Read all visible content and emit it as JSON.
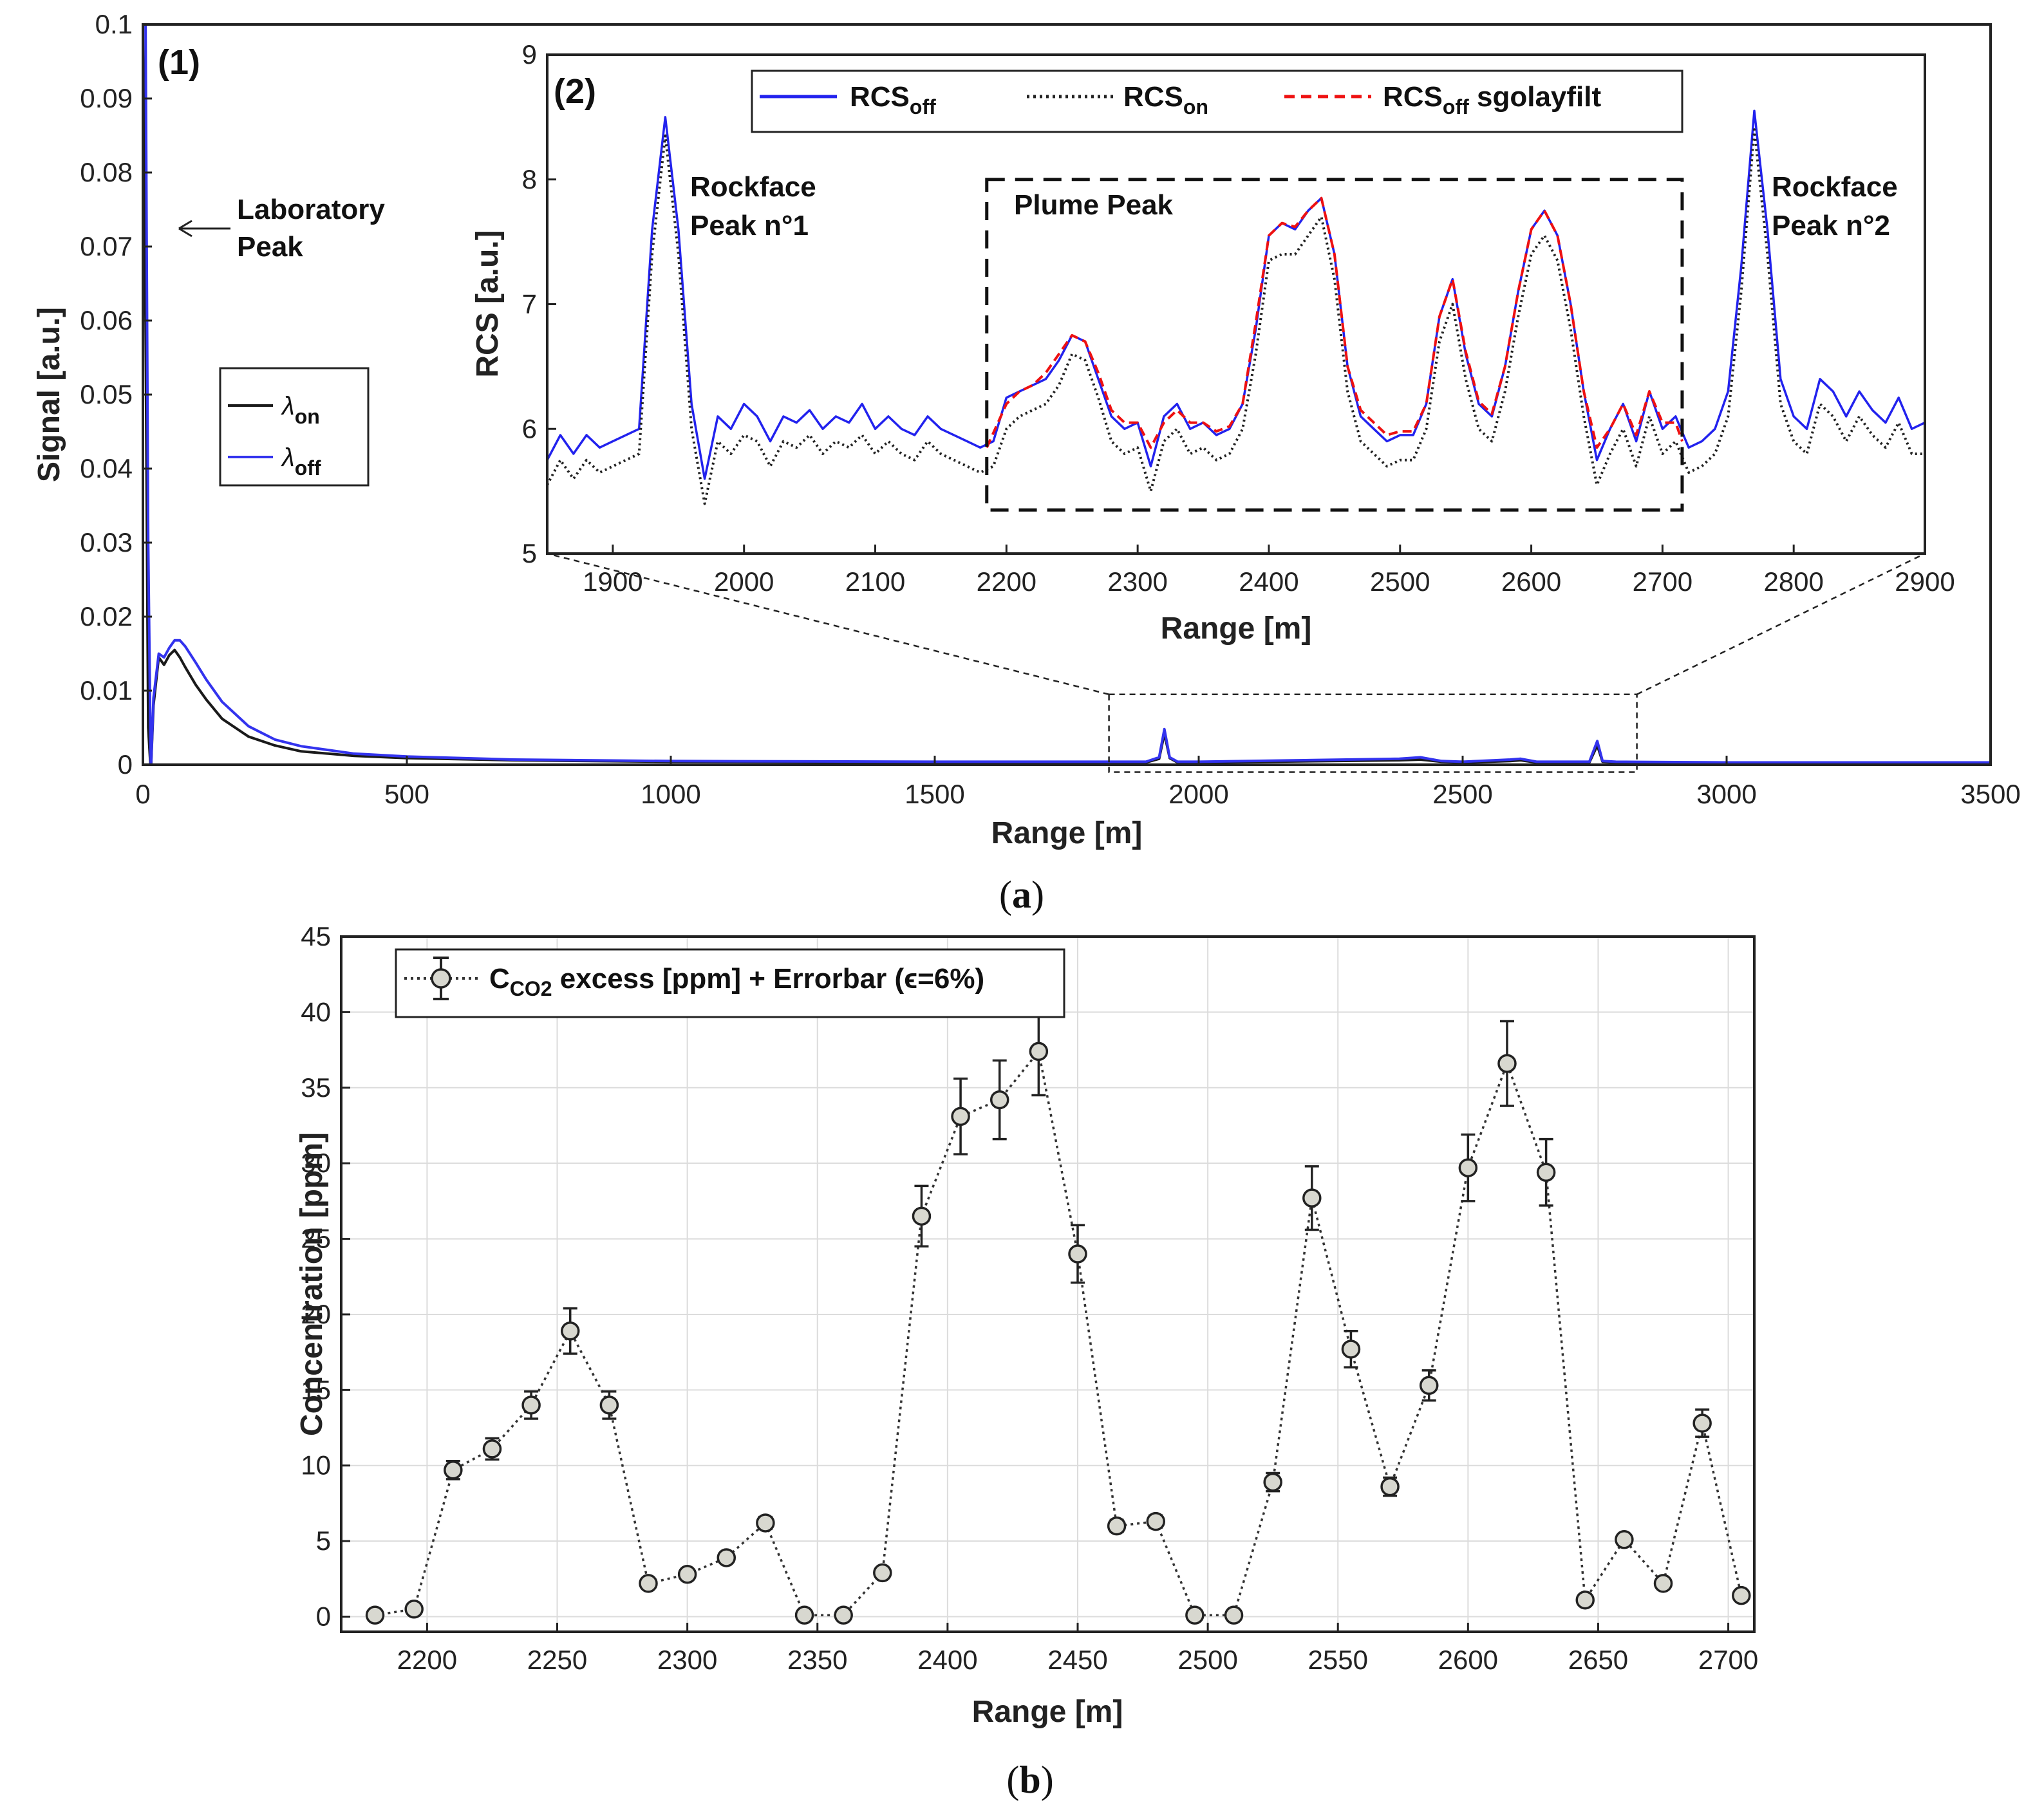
{
  "chart_data": [
    {
      "id": "a1",
      "type": "line",
      "panel_label": "(1)",
      "xlabel": "Range [m]",
      "ylabel": "Signal [a.u.]",
      "xlim": [
        0,
        3500
      ],
      "ylim": [
        0,
        0.1
      ],
      "xticks": [
        "0",
        "500",
        "1000",
        "1500",
        "2000",
        "2500",
        "3000",
        "3500"
      ],
      "xtick_values": [
        0,
        500,
        1000,
        1500,
        2000,
        2500,
        3000,
        3500
      ],
      "yticks": [
        "0",
        "0.01",
        "0.02",
        "0.03",
        "0.04",
        "0.05",
        "0.06",
        "0.07",
        "0.08",
        "0.09",
        "0.1"
      ],
      "ytick_values": [
        0,
        0.01,
        0.02,
        0.03,
        0.04,
        0.05,
        0.06,
        0.07,
        0.08,
        0.09,
        0.1
      ],
      "annotation": [
        "Laboratory",
        "Peak"
      ],
      "legend": {
        "entries": [
          {
            "symbol": "λ",
            "sub": "on",
            "color": "#1a1a1a"
          },
          {
            "symbol": "λ",
            "sub": "off",
            "color": "#3333ee"
          }
        ],
        "position": "left"
      },
      "zoom_box": {
        "x": [
          1830,
          2830
        ],
        "y": [
          -0.001,
          0.0095
        ]
      },
      "series": [
        {
          "name": "λon",
          "color": "#1a1a1a",
          "x": [
            0,
            5,
            10,
            15,
            20,
            30,
            40,
            50,
            60,
            70,
            80,
            100,
            120,
            150,
            200,
            250,
            300,
            400,
            500,
            700,
            1000,
            1500,
            1900,
            1925,
            1935,
            1945,
            1960,
            2000,
            2380,
            2420,
            2460,
            2500,
            2590,
            2610,
            2640,
            2740,
            2755,
            2765,
            2790,
            3000,
            3500
          ],
          "y": [
            0.1,
            0.06,
            0.005,
            -0.001,
            0.008,
            0.0145,
            0.0135,
            0.0148,
            0.0155,
            0.0145,
            0.0132,
            0.0108,
            0.0088,
            0.0062,
            0.0038,
            0.0026,
            0.0018,
            0.0012,
            0.0009,
            0.0006,
            0.0004,
            0.0003,
            0.0003,
            0.0008,
            0.0042,
            0.0009,
            0.0003,
            0.0003,
            0.0006,
            0.0007,
            0.0004,
            0.0003,
            0.0005,
            0.0006,
            0.0003,
            0.0003,
            0.0026,
            0.0004,
            0.0003,
            0.0002,
            0.0002
          ]
        },
        {
          "name": "λoff",
          "color": "#3333ee",
          "x": [
            0,
            5,
            10,
            15,
            20,
            30,
            40,
            50,
            60,
            70,
            80,
            100,
            120,
            150,
            200,
            250,
            300,
            400,
            500,
            700,
            1000,
            1500,
            1900,
            1925,
            1935,
            1945,
            1960,
            2000,
            2380,
            2420,
            2460,
            2500,
            2590,
            2610,
            2640,
            2740,
            2755,
            2765,
            2790,
            3000,
            3500
          ],
          "y": [
            0.1,
            0.1,
            0.03,
            -0.001,
            0.009,
            0.015,
            0.0145,
            0.0158,
            0.0168,
            0.0168,
            0.016,
            0.0138,
            0.0115,
            0.0085,
            0.0052,
            0.0034,
            0.0025,
            0.0015,
            0.0011,
            0.0007,
            0.0005,
            0.0004,
            0.0004,
            0.001,
            0.0048,
            0.001,
            0.0004,
            0.0004,
            0.0008,
            0.001,
            0.0005,
            0.0004,
            0.0007,
            0.0008,
            0.0004,
            0.0004,
            0.0032,
            0.0005,
            0.0004,
            0.0003,
            0.0003
          ]
        }
      ]
    },
    {
      "id": "a2",
      "type": "line",
      "panel_label": "(2)",
      "xlabel": "Range [m]",
      "ylabel": "RCS [a.u.]",
      "xlim": [
        1850,
        2900
      ],
      "ylim": [
        5,
        9
      ],
      "xticks": [
        "1900",
        "2000",
        "2100",
        "2200",
        "2300",
        "2400",
        "2500",
        "2600",
        "2700",
        "2800",
        "2900"
      ],
      "xtick_values": [
        1900,
        2000,
        2100,
        2200,
        2300,
        2400,
        2500,
        2600,
        2700,
        2800,
        2900
      ],
      "yticks": [
        "5",
        "6",
        "7",
        "8",
        "9"
      ],
      "ytick_values": [
        5,
        6,
        7,
        8,
        9
      ],
      "annotations": [
        {
          "lines": [
            "Rockface",
            "Peak n°1"
          ],
          "x": 1960,
          "y": 8.05
        },
        {
          "lines": [
            "Plume Peak"
          ],
          "x": 2195,
          "y": 7.75
        },
        {
          "lines": [
            "Rockface",
            "Peak n°2"
          ],
          "x": 2785,
          "y": 8.05
        }
      ],
      "plume_box": {
        "x": [
          2185,
          2715
        ],
        "y": [
          5.35,
          8.0
        ]
      },
      "legend": {
        "entries": [
          {
            "label": "RCS",
            "sub": "off",
            "suffix": "",
            "color": "#2222ee",
            "dash": "solid"
          },
          {
            "label": "RCS",
            "sub": "on",
            "suffix": "",
            "color": "#222222",
            "dash": "dotted"
          },
          {
            "label": "RCS",
            "sub": "off",
            "suffix": " sgolayfilt",
            "color": "#ee1111",
            "dash": "dashed"
          }
        ],
        "position": "top-center"
      },
      "series": [
        {
          "name": "RCSoff",
          "color": "#2222ee",
          "x": [
            1850,
            1860,
            1870,
            1880,
            1890,
            1900,
            1910,
            1920,
            1930,
            1940,
            1950,
            1960,
            1970,
            1980,
            1990,
            2000,
            2010,
            2020,
            2030,
            2040,
            2050,
            2060,
            2070,
            2080,
            2090,
            2100,
            2110,
            2120,
            2130,
            2140,
            2150,
            2160,
            2170,
            2180,
            2190,
            2200,
            2210,
            2220,
            2230,
            2240,
            2250,
            2260,
            2270,
            2280,
            2290,
            2300,
            2310,
            2320,
            2330,
            2340,
            2350,
            2360,
            2370,
            2380,
            2390,
            2400,
            2410,
            2420,
            2430,
            2440,
            2450,
            2460,
            2470,
            2480,
            2490,
            2500,
            2510,
            2520,
            2530,
            2540,
            2550,
            2560,
            2570,
            2580,
            2590,
            2600,
            2610,
            2620,
            2630,
            2640,
            2650,
            2660,
            2670,
            2680,
            2690,
            2700,
            2710,
            2720,
            2730,
            2740,
            2750,
            2760,
            2770,
            2780,
            2790,
            2800,
            2810,
            2820,
            2830,
            2840,
            2850,
            2860,
            2870,
            2880,
            2890,
            2900
          ],
          "y": [
            5.75,
            5.95,
            5.8,
            5.95,
            5.85,
            5.9,
            5.95,
            6.0,
            7.6,
            8.5,
            7.6,
            6.2,
            5.6,
            6.1,
            6.0,
            6.2,
            6.1,
            5.9,
            6.1,
            6.05,
            6.15,
            6.0,
            6.1,
            6.05,
            6.2,
            6.0,
            6.1,
            6.0,
            5.95,
            6.1,
            6.0,
            5.95,
            5.9,
            5.85,
            5.9,
            6.25,
            6.3,
            6.35,
            6.4,
            6.55,
            6.75,
            6.7,
            6.4,
            6.1,
            6.0,
            6.05,
            5.7,
            6.1,
            6.2,
            6.0,
            6.05,
            5.95,
            6.0,
            6.2,
            6.8,
            7.55,
            7.65,
            7.6,
            7.75,
            7.85,
            7.4,
            6.5,
            6.1,
            6.0,
            5.9,
            5.95,
            5.95,
            6.2,
            6.9,
            7.2,
            6.6,
            6.2,
            6.1,
            6.5,
            7.1,
            7.6,
            7.75,
            7.55,
            7.0,
            6.3,
            5.75,
            6.0,
            6.2,
            5.9,
            6.3,
            6.0,
            6.1,
            5.85,
            5.9,
            6.0,
            6.3,
            7.3,
            8.55,
            7.6,
            6.4,
            6.1,
            6.0,
            6.4,
            6.3,
            6.1,
            6.3,
            6.15,
            6.05,
            6.25,
            6.0,
            6.05
          ]
        },
        {
          "name": "RCSon",
          "color": "#222222",
          "x": [
            1850,
            1860,
            1870,
            1880,
            1890,
            1900,
            1910,
            1920,
            1930,
            1940,
            1950,
            1960,
            1970,
            1980,
            1990,
            2000,
            2010,
            2020,
            2030,
            2040,
            2050,
            2060,
            2070,
            2080,
            2090,
            2100,
            2110,
            2120,
            2130,
            2140,
            2150,
            2160,
            2170,
            2180,
            2190,
            2200,
            2210,
            2220,
            2230,
            2240,
            2250,
            2260,
            2270,
            2280,
            2290,
            2300,
            2310,
            2320,
            2330,
            2340,
            2350,
            2360,
            2370,
            2380,
            2390,
            2400,
            2410,
            2420,
            2430,
            2440,
            2450,
            2460,
            2470,
            2480,
            2490,
            2500,
            2510,
            2520,
            2530,
            2540,
            2550,
            2560,
            2570,
            2580,
            2590,
            2600,
            2610,
            2620,
            2630,
            2640,
            2650,
            2660,
            2670,
            2680,
            2690,
            2700,
            2710,
            2720,
            2730,
            2740,
            2750,
            2760,
            2770,
            2780,
            2790,
            2800,
            2810,
            2820,
            2830,
            2840,
            2850,
            2860,
            2870,
            2880,
            2890,
            2900
          ],
          "y": [
            5.55,
            5.75,
            5.6,
            5.75,
            5.65,
            5.7,
            5.75,
            5.8,
            7.4,
            8.35,
            7.4,
            6.0,
            5.4,
            5.9,
            5.8,
            5.95,
            5.9,
            5.7,
            5.9,
            5.85,
            5.95,
            5.8,
            5.9,
            5.85,
            5.95,
            5.8,
            5.9,
            5.8,
            5.75,
            5.9,
            5.8,
            5.75,
            5.7,
            5.65,
            5.7,
            6.0,
            6.1,
            6.15,
            6.2,
            6.35,
            6.6,
            6.55,
            6.25,
            5.9,
            5.8,
            5.85,
            5.5,
            5.9,
            6.0,
            5.8,
            5.85,
            5.75,
            5.8,
            6.0,
            6.6,
            7.35,
            7.4,
            7.4,
            7.55,
            7.7,
            7.2,
            6.3,
            5.9,
            5.8,
            5.7,
            5.75,
            5.75,
            6.0,
            6.7,
            7.0,
            6.4,
            6.0,
            5.9,
            6.3,
            6.9,
            7.4,
            7.55,
            7.35,
            6.8,
            6.1,
            5.55,
            5.8,
            6.0,
            5.7,
            6.1,
            5.8,
            5.9,
            5.65,
            5.7,
            5.8,
            6.1,
            7.1,
            8.4,
            7.4,
            6.2,
            5.9,
            5.8,
            6.2,
            6.1,
            5.9,
            6.1,
            5.95,
            5.85,
            6.05,
            5.8,
            5.8
          ]
        },
        {
          "name": "RCSoff sgolayfilt",
          "color": "#ee1111",
          "x": [
            2185,
            2200,
            2210,
            2220,
            2230,
            2240,
            2250,
            2260,
            2270,
            2280,
            2290,
            2300,
            2310,
            2320,
            2330,
            2340,
            2350,
            2360,
            2370,
            2380,
            2390,
            2400,
            2410,
            2420,
            2430,
            2440,
            2450,
            2460,
            2470,
            2480,
            2490,
            2500,
            2510,
            2520,
            2530,
            2540,
            2550,
            2560,
            2570,
            2580,
            2590,
            2600,
            2610,
            2620,
            2630,
            2640,
            2650,
            2660,
            2670,
            2680,
            2690,
            2700,
            2710,
            2715
          ],
          "y": [
            5.85,
            6.2,
            6.3,
            6.35,
            6.45,
            6.6,
            6.75,
            6.7,
            6.45,
            6.15,
            6.05,
            6.05,
            5.85,
            6.05,
            6.15,
            6.05,
            6.05,
            5.98,
            6.02,
            6.2,
            6.85,
            7.55,
            7.65,
            7.62,
            7.75,
            7.85,
            7.4,
            6.5,
            6.15,
            6.05,
            5.95,
            5.98,
            5.98,
            6.2,
            6.9,
            7.2,
            6.62,
            6.22,
            6.12,
            6.5,
            7.1,
            7.6,
            7.75,
            7.55,
            7.0,
            6.3,
            5.85,
            6.0,
            6.2,
            5.95,
            6.3,
            6.05,
            6.05,
            5.9
          ]
        }
      ]
    },
    {
      "id": "b",
      "type": "scatter",
      "xlabel": "Range [m]",
      "ylabel": "Concentration [ppm]",
      "xlim": [
        2167,
        2710
      ],
      "ylim": [
        -1,
        45
      ],
      "xticks": [
        "2200",
        "2250",
        "2300",
        "2350",
        "2400",
        "2450",
        "2500",
        "2550",
        "2600",
        "2650",
        "2700"
      ],
      "xtick_values": [
        2200,
        2250,
        2300,
        2350,
        2400,
        2450,
        2500,
        2550,
        2600,
        2650,
        2700
      ],
      "yticks": [
        "0",
        "5",
        "10",
        "15",
        "20",
        "25",
        "30",
        "35",
        "40",
        "45"
      ],
      "ytick_values": [
        0,
        5,
        10,
        15,
        20,
        25,
        30,
        35,
        40,
        45
      ],
      "grid": true,
      "legend": {
        "label": "C",
        "sub": "CO2",
        "text": " excess [ppm] + Errorbar (ϵ=6%)",
        "position": "top-left"
      },
      "series": [
        {
          "name": "CCO2 excess [ppm] + Errorbar (ϵ=6%)",
          "color": "#d8d8d0",
          "x": [
            2180,
            2195,
            2210,
            2225,
            2240,
            2255,
            2270,
            2285,
            2300,
            2315,
            2330,
            2345,
            2360,
            2375,
            2390,
            2405,
            2420,
            2435,
            2450,
            2465,
            2480,
            2495,
            2510,
            2525,
            2540,
            2555,
            2570,
            2585,
            2600,
            2615,
            2630,
            2645,
            2660,
            2675,
            2690,
            2705
          ],
          "y": [
            0.1,
            0.5,
            9.7,
            11.1,
            14.0,
            18.9,
            14.0,
            2.2,
            2.8,
            3.9,
            6.2,
            0.1,
            0.1,
            2.9,
            26.5,
            33.1,
            34.2,
            37.4,
            24.0,
            6.0,
            6.3,
            0.1,
            0.1,
            8.9,
            27.7,
            17.7,
            8.6,
            15.3,
            29.7,
            36.6,
            29.4,
            1.1,
            5.1,
            2.2,
            12.8,
            1.4
          ],
          "err": [
            0.05,
            0.1,
            0.6,
            0.7,
            0.9,
            1.5,
            0.9,
            0.2,
            0.2,
            0.3,
            0.4,
            0.05,
            0.05,
            0.2,
            2.0,
            2.5,
            2.6,
            2.9,
            1.9,
            0.4,
            0.4,
            0.05,
            0.05,
            0.6,
            2.1,
            1.2,
            0.6,
            1.0,
            2.2,
            2.8,
            2.2,
            0.1,
            0.3,
            0.2,
            0.9,
            0.1
          ]
        }
      ]
    }
  ],
  "captions": {
    "a": "a",
    "b": "b"
  }
}
